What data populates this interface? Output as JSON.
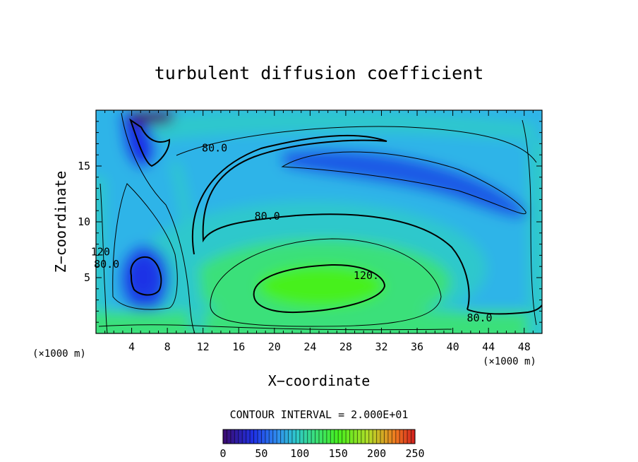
{
  "chart_data": {
    "type": "heatmap",
    "title": "turbulent diffusion coefficient",
    "xlabel": "X−coordinate",
    "ylabel": "Z−coordinate",
    "x_unit_label": "(×1000 m)",
    "y_unit_label": "(×1000 m)",
    "xlim": [
      0,
      50
    ],
    "ylim": [
      0,
      20
    ],
    "x_ticks": [
      4,
      8,
      12,
      16,
      20,
      24,
      28,
      32,
      36,
      40,
      44,
      48
    ],
    "y_ticks": [
      5,
      10,
      15
    ],
    "contour_interval_text": "CONTOUR INTERVAL = 2.000E+01",
    "contour_labels": [
      {
        "text": "80.0",
        "x": 13.3,
        "y": 16.6
      },
      {
        "text": "80.0",
        "x": 19.2,
        "y": 10.5
      },
      {
        "text": "120.",
        "x": 30.3,
        "y": 5.2
      },
      {
        "text": "80.0",
        "x": 43.0,
        "y": 1.4
      },
      {
        "text": "80.0",
        "x": 1.2,
        "y": 6.2
      },
      {
        "text": "120",
        "x": 0.5,
        "y": 7.3
      }
    ],
    "colorbar": {
      "min": 0,
      "max": 250,
      "ticks": [
        0,
        50,
        100,
        150,
        200,
        250
      ],
      "colors": [
        "#3c0a6e",
        "#1e32e6",
        "#2f8cf0",
        "#2ec8cc",
        "#3ae07a",
        "#46f01e",
        "#b4dc28",
        "#f07820",
        "#d21e1e"
      ]
    },
    "colorscale_nodes": [
      {
        "v": 0,
        "c": "#3c0a6e"
      },
      {
        "v": 40,
        "c": "#1e32e6"
      },
      {
        "v": 70,
        "c": "#2f8cf0"
      },
      {
        "v": 95,
        "c": "#2ec8cc"
      },
      {
        "v": 120,
        "c": "#3ae07a"
      },
      {
        "v": 150,
        "c": "#46f01e"
      },
      {
        "v": 190,
        "c": "#b4dc28"
      },
      {
        "v": 225,
        "c": "#f07820"
      },
      {
        "v": 250,
        "c": "#d21e1e"
      }
    ]
  }
}
